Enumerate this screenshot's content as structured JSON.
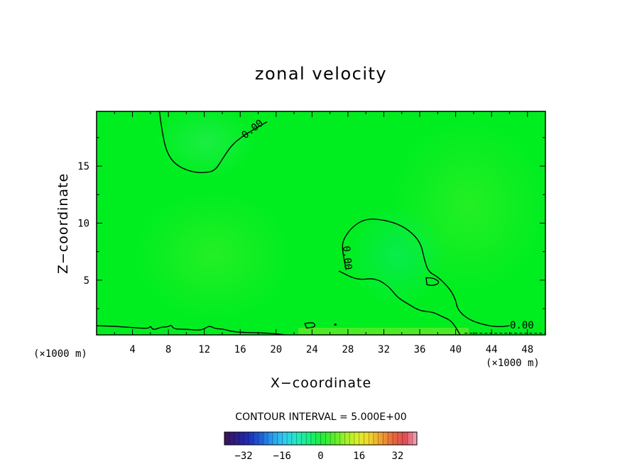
{
  "chart_data": {
    "type": "heatmap",
    "title": "zonal velocity",
    "xlabel": "X−coordinate",
    "ylabel": "Z−coordinate",
    "x_unit_left": "(×1000 m)",
    "x_unit_right": "(×1000 m)",
    "xlim": [
      0,
      50
    ],
    "ylim": [
      0.2,
      19.8
    ],
    "x_ticks": [
      4,
      8,
      12,
      16,
      20,
      24,
      28,
      32,
      36,
      40,
      44,
      48
    ],
    "y_ticks": [
      5,
      10,
      15
    ],
    "x_tick_labels": [
      "4",
      "8",
      "12",
      "16",
      "20",
      "24",
      "28",
      "32",
      "36",
      "40",
      "44",
      "48"
    ],
    "y_tick_labels": [
      "5",
      "10",
      "15"
    ],
    "contour_level_label": "0.00",
    "contour_interval_text": "CONTOUR INTERVAL = 5.000E+00",
    "colorbar": {
      "range": [
        -40,
        40
      ],
      "ticks": [
        -32,
        -16,
        0,
        16,
        32
      ],
      "tick_labels": [
        "−32",
        "−16",
        "0",
        "16",
        "32"
      ],
      "colors": [
        "#3b1458",
        "#2c1d88",
        "#1f2db5",
        "#1f5fd9",
        "#2a9ef0",
        "#30cdf0",
        "#25e8c0",
        "#16f080",
        "#1eec3e",
        "#4ef02a",
        "#9af02a",
        "#d8f02a",
        "#f0d82a",
        "#f0a030",
        "#e86a3a",
        "#e04a55",
        "#f0a8b8"
      ]
    },
    "field_background": "#00ee20",
    "zero_contours": [
      {
        "name": "upper-left-lobe",
        "points": [
          [
            7.0,
            19.8
          ],
          [
            7.3,
            18.0
          ],
          [
            7.8,
            16.2
          ],
          [
            8.8,
            15.1
          ],
          [
            10.5,
            14.5
          ],
          [
            12.0,
            14.4
          ],
          [
            13.2,
            14.6
          ],
          [
            14.0,
            15.6
          ],
          [
            15.0,
            16.8
          ],
          [
            16.2,
            17.6
          ],
          [
            17.5,
            18.2
          ],
          [
            19.0,
            18.9
          ]
        ]
      },
      {
        "name": "central-plume",
        "points": [
          [
            27.8,
            5.9
          ],
          [
            27.4,
            7.5
          ],
          [
            27.4,
            8.5
          ],
          [
            28.5,
            9.7
          ],
          [
            30.0,
            10.4
          ],
          [
            32.0,
            10.3
          ],
          [
            34.0,
            9.8
          ],
          [
            35.5,
            8.9
          ],
          [
            36.2,
            8.0
          ],
          [
            36.5,
            6.8
          ],
          [
            37.0,
            5.7
          ],
          [
            38.0,
            5.3
          ],
          [
            39.3,
            4.3
          ],
          [
            40.0,
            3.3
          ],
          [
            40.2,
            2.4
          ],
          [
            41.5,
            1.5
          ],
          [
            43.5,
            1.0
          ],
          [
            45.0,
            0.9
          ],
          [
            46.0,
            1.0
          ]
        ]
      },
      {
        "name": "central-plume-inner",
        "points": [
          [
            27.0,
            5.8
          ],
          [
            29.0,
            5.0
          ],
          [
            31.0,
            5.2
          ],
          [
            32.5,
            4.5
          ],
          [
            33.5,
            3.5
          ],
          [
            34.5,
            3.0
          ],
          [
            36.0,
            2.3
          ],
          [
            37.5,
            2.2
          ],
          [
            38.5,
            1.8
          ],
          [
            39.4,
            1.5
          ],
          [
            40.0,
            0.9
          ],
          [
            40.5,
            0.2
          ]
        ]
      },
      {
        "name": "small-closed-right",
        "closed": true,
        "points": [
          [
            36.7,
            5.2
          ],
          [
            37.5,
            5.2
          ],
          [
            38.3,
            4.8
          ],
          [
            37.5,
            4.5
          ],
          [
            36.8,
            4.6
          ]
        ]
      },
      {
        "name": "near-surface",
        "points": [
          [
            0.0,
            1.0
          ],
          [
            2.0,
            0.95
          ],
          [
            4.0,
            0.85
          ],
          [
            5.8,
            0.75
          ],
          [
            6.0,
            1.0
          ],
          [
            6.3,
            0.6
          ],
          [
            7.2,
            0.9
          ],
          [
            8.0,
            0.9
          ],
          [
            8.3,
            1.1
          ],
          [
            8.6,
            0.7
          ],
          [
            10.0,
            0.7
          ],
          [
            11.5,
            0.6
          ],
          [
            12.0,
            0.75
          ],
          [
            12.6,
            1.0
          ],
          [
            13.2,
            0.75
          ],
          [
            14.2,
            0.7
          ],
          [
            15.0,
            0.5
          ],
          [
            16.5,
            0.4
          ],
          [
            18.0,
            0.4
          ],
          [
            20.0,
            0.3
          ],
          [
            21.0,
            0.2
          ]
        ]
      },
      {
        "name": "small-closed-left",
        "closed": true,
        "points": [
          [
            23.2,
            1.2
          ],
          [
            24.2,
            1.3
          ],
          [
            24.4,
            0.9
          ],
          [
            23.4,
            0.8
          ]
        ]
      }
    ]
  }
}
